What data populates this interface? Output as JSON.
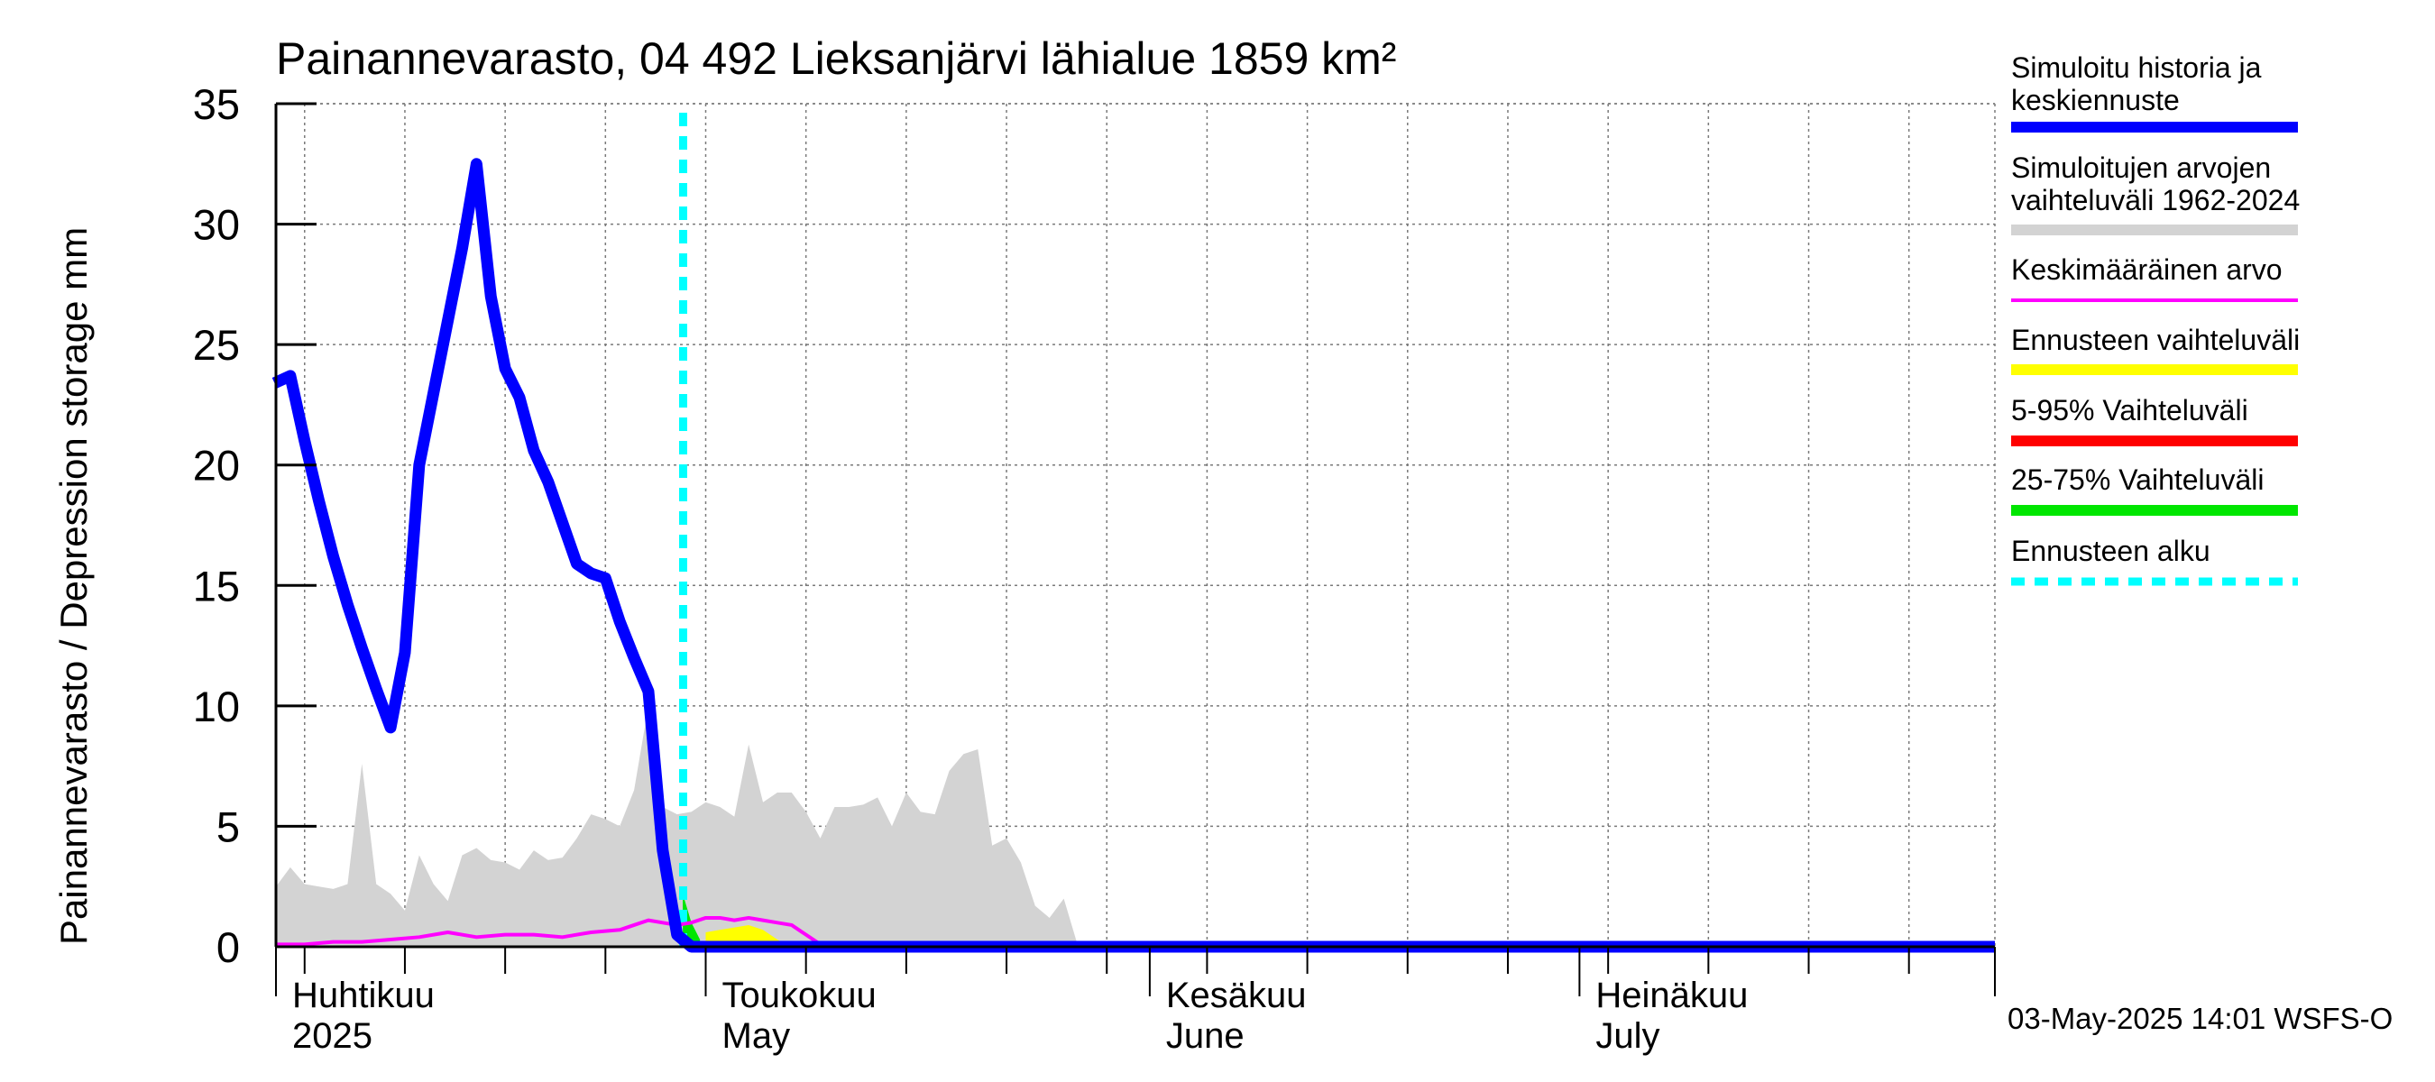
{
  "chart_data": {
    "type": "area",
    "title": "Painannevarasto, 04 492 Lieksanjärvi lähialue 1859 km²",
    "ylabel": "Painannevarasto / Depression storage    mm",
    "ylim": [
      0,
      35
    ],
    "yticks": [
      0,
      5,
      10,
      15,
      20,
      25,
      30,
      35
    ],
    "xlim_day": [
      0,
      120
    ],
    "month_labels": [
      {
        "day": 0,
        "fi": "Huhtikuu",
        "en": "2025"
      },
      {
        "day": 30,
        "fi": "Toukokuu",
        "en": "May"
      },
      {
        "day": 61,
        "fi": "Kesäkuu",
        "en": "June"
      },
      {
        "day": 91,
        "fi": "Heinäkuu",
        "en": "July"
      }
    ],
    "forecast_start_day": 30,
    "x_desc": "day 0 = 1 April 2025 (x axis starts at day -0.1)",
    "series": [
      {
        "name": "Simuloitujen arvojen vaihteluväli 1962-2024",
        "kind": "band",
        "color": "#d3d3d3",
        "x": [
          0,
          1,
          2,
          3,
          4,
          5,
          6,
          7,
          8,
          9,
          10,
          11,
          12,
          13,
          14,
          15,
          16,
          17,
          18,
          19,
          20,
          21,
          22,
          23,
          24,
          25,
          26,
          27,
          28,
          29,
          30,
          31,
          32,
          33,
          34,
          35,
          36,
          37,
          38,
          39,
          40,
          41,
          42,
          43,
          44,
          45,
          46,
          47,
          48,
          49,
          50,
          51,
          52,
          53,
          54,
          55,
          56
        ],
        "high": [
          2.5,
          3.3,
          2.6,
          2.5,
          2.4,
          2.6,
          7.6,
          2.6,
          2.2,
          1.5,
          3.8,
          2.6,
          1.9,
          3.8,
          4.1,
          3.6,
          3.5,
          3.2,
          4.0,
          3.6,
          3.7,
          4.5,
          5.5,
          5.3,
          5.0,
          6.5,
          10.0,
          5.8,
          5.5,
          5.6,
          6.0,
          5.8,
          5.4,
          8.4,
          6.0,
          6.4,
          6.4,
          5.6,
          4.5,
          5.8,
          5.8,
          5.9,
          6.2,
          5.0,
          6.4,
          5.6,
          5.5,
          7.3,
          8.0,
          8.2,
          4.2,
          4.5,
          3.5,
          1.7,
          1.2,
          2.0,
          0.0
        ],
        "low": [
          0,
          0,
          0,
          0,
          0,
          0,
          0,
          0,
          0,
          0,
          0,
          0,
          0,
          0,
          0,
          0,
          0,
          0,
          0,
          0,
          0,
          0,
          0,
          0,
          0,
          0,
          0,
          0,
          0,
          0,
          0,
          0,
          0,
          0,
          0,
          0,
          0,
          0,
          0,
          0,
          0,
          0,
          0,
          0,
          0,
          0,
          0,
          0,
          0,
          0,
          0,
          0,
          0,
          0,
          0,
          0,
          0
        ]
      },
      {
        "name": "Ennusteen vaihteluväli",
        "kind": "band",
        "color": "#ffff00",
        "x": [
          30,
          31,
          32,
          33,
          34,
          35,
          36
        ],
        "high": [
          0.6,
          0.7,
          0.8,
          0.9,
          0.7,
          0.3,
          0
        ],
        "low": [
          0,
          0,
          0,
          0,
          0,
          0,
          0
        ]
      },
      {
        "name": "25-75% Vaihteluväli",
        "kind": "band",
        "color": "#00e600",
        "x": [
          28.4,
          29,
          29.6
        ],
        "high": [
          2.2,
          1.0,
          0.3
        ],
        "low": [
          0.0,
          0.0,
          0.0
        ]
      },
      {
        "name": "Keskimääräinen arvo",
        "kind": "line",
        "color": "#ff00ff",
        "x": [
          0,
          2,
          4,
          6,
          8,
          10,
          12,
          14,
          16,
          18,
          20,
          22,
          24,
          25,
          26,
          27,
          28,
          29,
          30,
          31,
          32,
          33,
          34,
          35,
          36,
          37,
          38,
          40,
          45,
          50,
          60,
          80,
          100,
          120
        ],
        "values": [
          0.1,
          0.1,
          0.2,
          0.2,
          0.3,
          0.4,
          0.6,
          0.4,
          0.5,
          0.5,
          0.4,
          0.6,
          0.7,
          0.9,
          1.1,
          1.0,
          0.9,
          1.0,
          1.2,
          1.2,
          1.1,
          1.2,
          1.1,
          1.0,
          0.9,
          0.5,
          0.1,
          0.05,
          0.05,
          0.05,
          0.05,
          0.05,
          0.05,
          0.05
        ]
      },
      {
        "name": "Simuloitu historia ja keskiennuste",
        "kind": "line",
        "color": "#0000ff",
        "x": [
          -0.1,
          1,
          2,
          3,
          4,
          5,
          6,
          7,
          8,
          9,
          10,
          11,
          12,
          13,
          14,
          15,
          16,
          17,
          18,
          19,
          20,
          21,
          22,
          23,
          24,
          25,
          26,
          27,
          28,
          29,
          30,
          35,
          120
        ],
        "values": [
          23.4,
          23.7,
          21.0,
          18.5,
          16.2,
          14.2,
          12.4,
          10.7,
          9.1,
          12.2,
          20.0,
          23.0,
          26.0,
          29.0,
          32.5,
          27.0,
          24.0,
          22.8,
          20.6,
          19.3,
          17.6,
          15.9,
          15.5,
          15.3,
          13.5,
          12.0,
          10.6,
          4.0,
          0.5,
          0.0,
          0.0,
          0.0,
          0.0
        ]
      }
    ],
    "legend": [
      {
        "label": "Simuloitu historia ja keskiennuste",
        "color": "#0000ff",
        "style": "thick"
      },
      {
        "label": "Simuloitujen arvojen vaihteluväli 1962-2024",
        "color": "#d3d3d3",
        "style": "thick"
      },
      {
        "label": "Keskimääräinen arvo",
        "color": "#ff00ff",
        "style": "thin"
      },
      {
        "label": "Ennusteen vaihteluväli",
        "color": "#ffff00",
        "style": "thick"
      },
      {
        "label": "5-95% Vaihteluväli",
        "color": "#ff0000",
        "style": "thick"
      },
      {
        "label": "25-75% Vaihteluväli",
        "color": "#00e600",
        "style": "thick"
      },
      {
        "label": "Ennusteen alku",
        "color": "#00ffff",
        "style": "dashed"
      }
    ]
  },
  "footer": "03-May-2025 14:01 WSFS-O"
}
